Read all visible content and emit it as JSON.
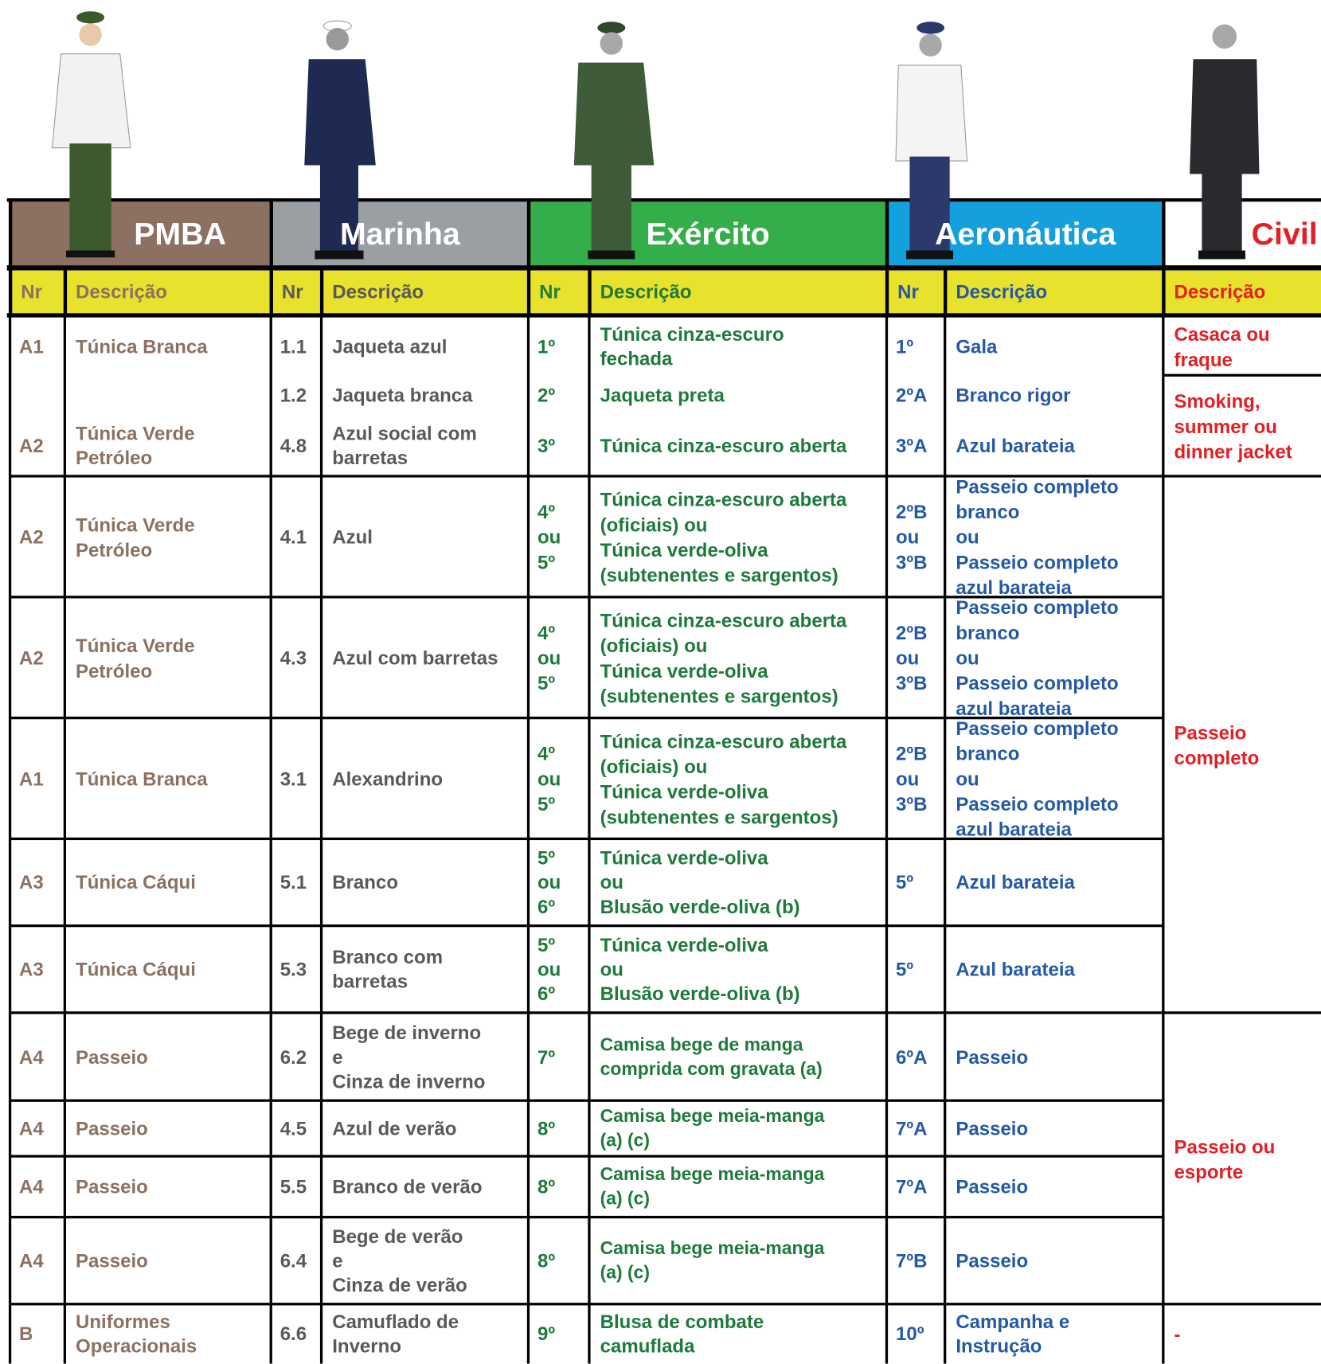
{
  "header": {
    "columns": [
      {
        "name": "PMBA",
        "nr": "Nr",
        "desc": "Descrição"
      },
      {
        "name": "Marinha",
        "nr": "Nr",
        "desc": "Descrição"
      },
      {
        "name": "Exército",
        "nr": "Nr",
        "desc": "Descrição"
      },
      {
        "name": "Aeronáutica",
        "nr": "Nr",
        "desc": "Descrição"
      },
      {
        "name": "Civil",
        "desc": "Descrição"
      }
    ]
  },
  "table": {
    "rows": [
      [
        "A1",
        "Túnica Branca",
        "1.1",
        "Jaqueta azul",
        "1º",
        "Túnica cinza-escuro\nfechada",
        "1º",
        "Gala",
        "Casaca ou\nfraque"
      ],
      [
        null,
        null,
        "1.2",
        "Jaqueta branca",
        "2º",
        "Jaqueta preta",
        "2ºA",
        "Branco rigor",
        "Smoking,\nsummer ou\ndinner jacket"
      ],
      [
        "A2",
        "Túnica Verde\nPetróleo",
        "4.8",
        "Azul social com\nbarretas",
        "3º",
        "Túnica cinza-escuro aberta",
        "3ºA",
        "Azul barateia",
        null
      ],
      [
        "A2",
        "Túnica Verde\nPetróleo",
        "4.1",
        "Azul",
        "4º\nou\n5º",
        "Túnica cinza-escuro aberta\n(oficiais) ou\nTúnica verde-oliva\n(subtenentes e sargentos)",
        "2ºB\nou\n3ºB",
        "Passeio completo\nbranco\nou\nPasseio completo\nazul barateia",
        "Passeio\ncompleto"
      ],
      [
        "A2",
        "Túnica Verde\nPetróleo",
        "4.3",
        "Azul com barretas",
        "4º\nou\n5º",
        "Túnica cinza-escuro aberta\n(oficiais) ou\nTúnica verde-oliva\n(subtenentes e sargentos)",
        "2ºB\nou\n3ºB",
        "Passeio completo\nbranco\nou\nPasseio completo\nazul barateia",
        null
      ],
      [
        "A1",
        "Túnica Branca",
        "3.1",
        "Alexandrino",
        "4º\nou\n5º",
        "Túnica cinza-escuro aberta\n(oficiais) ou\nTúnica verde-oliva\n(subtenentes e sargentos)",
        "2ºB\nou\n3ºB",
        "Passeio completo\nbranco\nou\nPasseio completo\nazul barateia",
        null
      ],
      [
        "A3",
        "Túnica Cáqui",
        "5.1",
        "Branco",
        "5º\nou\n6º",
        "Túnica verde-oliva\nou\nBlusão verde-oliva (b)",
        "5º",
        "Azul barateia",
        null
      ],
      [
        "A3",
        "Túnica Cáqui",
        "5.3",
        "Branco com\nbarretas",
        "5º\nou\n6º",
        "Túnica verde-oliva\nou\nBlusão verde-oliva (b)",
        "5º",
        "Azul barateia",
        null
      ],
      [
        "A4",
        "Passeio",
        "6.2",
        "Bege de inverno\ne\nCinza de inverno",
        "7º",
        "Camisa bege de manga\ncomprida com gravata (a)",
        "6ºA",
        "Passeio",
        "Passeio ou\nesporte"
      ],
      [
        "A4",
        "Passeio",
        "4.5",
        "Azul de verão",
        "8º",
        "Camisa bege meia-manga\n(a) (c)",
        "7ºA",
        "Passeio",
        null
      ],
      [
        "A4",
        "Passeio",
        "5.5",
        "Branco de verão",
        "8º",
        "Camisa bege meia-manga\n(a) (c)",
        "7ºA",
        "Passeio",
        null
      ],
      [
        "A4",
        "Passeio",
        "6.4",
        "Bege de verão\ne\nCinza de verão",
        "8º",
        "Camisa bege meia-manga\n(a) (c)",
        "7ºB",
        "Passeio",
        null
      ],
      [
        "B",
        "Uniformes\nOperacionais",
        "6.6",
        "Camuflado de\nInverno",
        "9º",
        "Blusa de combate\ncamuflada",
        "10º",
        "Campanha e\nInstrução",
        "-"
      ]
    ]
  }
}
